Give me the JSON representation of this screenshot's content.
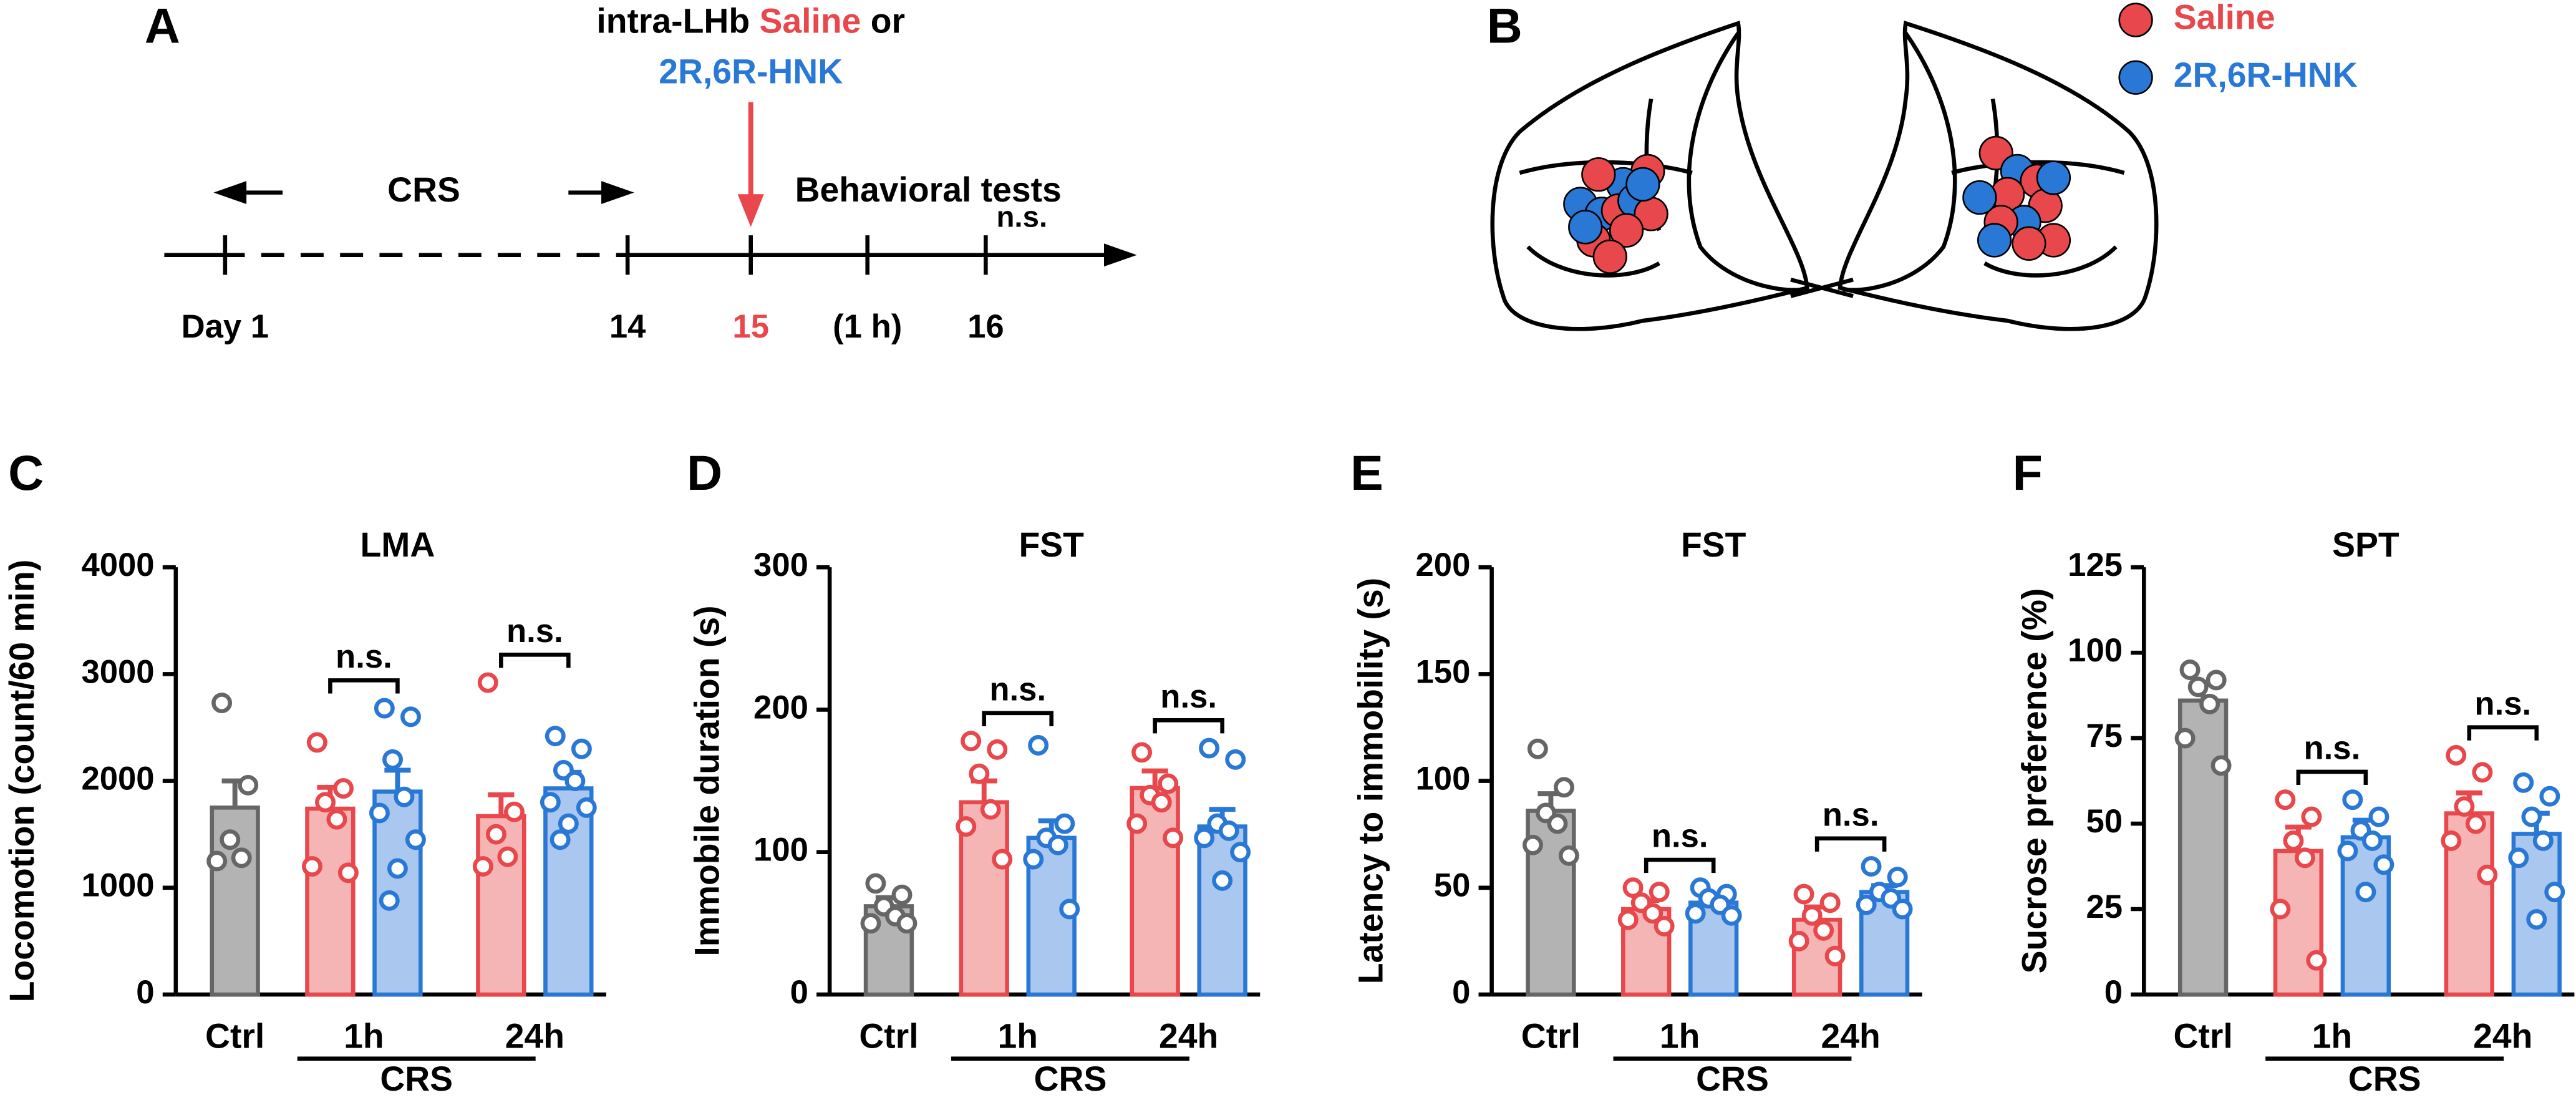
{
  "panel_a": {
    "label": "A",
    "injection": [
      "intra-LHb ",
      "Saline",
      " or"
    ],
    "drug": "2R,6R-HNK",
    "crs": "CRS",
    "behavioral": "Behavioral tests",
    "ns": "n.s.",
    "days": [
      "Day 1",
      "14",
      "15",
      "(1 h)",
      "16"
    ]
  },
  "panel_b": {
    "label": "B",
    "legend": [
      {
        "name": "Saline",
        "color": "#e8474c"
      },
      {
        "name": "2R,6R-HNK",
        "color": "#2a78d6"
      }
    ]
  },
  "chart_data": [
    {
      "type": "bar",
      "panel": "C",
      "title": "LMA",
      "ylabel": "Locomotion (count/60 min)",
      "categories": [
        "Ctrl",
        "1h",
        "24h"
      ],
      "group": "CRS",
      "ylim": [
        0,
        4000
      ],
      "yticks": [
        0,
        1000,
        2000,
        3000,
        4000
      ],
      "annotations": [
        null,
        "n.s.",
        "n.s."
      ],
      "series": [
        {
          "color": "#666666",
          "fill": "#b3b3b3",
          "values": [
            1750,
            null,
            null
          ],
          "errors": [
            250,
            null,
            null
          ],
          "points": [
            [
              2730,
              1960,
              1450,
              1280,
              1250
            ],
            null,
            null
          ]
        },
        {
          "color": "#e8474c",
          "fill": "#f6b5b5",
          "values": [
            null,
            1740,
            1670
          ],
          "errors": [
            null,
            200,
            200
          ],
          "points": [
            null,
            [
              2360,
              1930,
              1800,
              1640,
              1200,
              1140
            ],
            [
              2920,
              1710,
              1500,
              1290,
              1200
            ]
          ]
        },
        {
          "color": "#2a78d6",
          "fill": "#aac8ef",
          "values": [
            null,
            1900,
            1930
          ],
          "errors": [
            null,
            200,
            150
          ],
          "points": [
            null,
            [
              2680,
              2600,
              2200,
              1850,
              1700,
              1450,
              1180,
              880
            ],
            [
              2420,
              2300,
              2100,
              2000,
              1800,
              1750,
              1600,
              1450
            ]
          ]
        }
      ]
    },
    {
      "type": "bar",
      "panel": "D",
      "title": "FST",
      "ylabel": "Immobile duration (s)",
      "categories": [
        "Ctrl",
        "1h",
        "24h"
      ],
      "group": "CRS",
      "ylim": [
        0,
        300
      ],
      "yticks": [
        0,
        100,
        200,
        300
      ],
      "annotations": [
        null,
        "n.s.",
        "n.s."
      ],
      "series": [
        {
          "color": "#666666",
          "fill": "#b3b3b3",
          "values": [
            62,
            null,
            null
          ],
          "errors": [
            6,
            null,
            null
          ],
          "points": [
            [
              78,
              70,
              62,
              55,
              50,
              50
            ],
            null,
            null
          ]
        },
        {
          "color": "#e8474c",
          "fill": "#f6b5b5",
          "values": [
            null,
            135,
            145
          ],
          "errors": [
            null,
            15,
            12
          ],
          "points": [
            null,
            [
              178,
              172,
              155,
              130,
              118,
              95
            ],
            [
              170,
              148,
              140,
              135,
              120,
              110
            ]
          ]
        },
        {
          "color": "#2a78d6",
          "fill": "#aac8ef",
          "values": [
            null,
            110,
            118
          ],
          "errors": [
            null,
            12,
            12
          ],
          "points": [
            null,
            [
              175,
              120,
              110,
              105,
              95,
              60
            ],
            [
              173,
              165,
              120,
              115,
              110,
              100,
              80
            ]
          ]
        }
      ]
    },
    {
      "type": "bar",
      "panel": "E",
      "title": "FST",
      "ylabel": "Latency to immobility (s)",
      "categories": [
        "Ctrl",
        "1h",
        "24h"
      ],
      "group": "CRS",
      "ylim": [
        0,
        200
      ],
      "yticks": [
        0,
        50,
        100,
        150,
        200
      ],
      "annotations": [
        null,
        "n.s.",
        "n.s."
      ],
      "series": [
        {
          "color": "#666666",
          "fill": "#b3b3b3",
          "values": [
            86,
            null,
            null
          ],
          "errors": [
            8,
            null,
            null
          ],
          "points": [
            [
              115,
              97,
              85,
              80,
              70,
              65
            ],
            null,
            null
          ]
        },
        {
          "color": "#e8474c",
          "fill": "#f6b5b5",
          "values": [
            null,
            40,
            35
          ],
          "errors": [
            null,
            4,
            6
          ],
          "points": [
            null,
            [
              50,
              48,
              43,
              38,
              35,
              32
            ],
            [
              47,
              43,
              37,
              30,
              25,
              18
            ]
          ]
        },
        {
          "color": "#2a78d6",
          "fill": "#aac8ef",
          "values": [
            null,
            43,
            48
          ],
          "errors": [
            null,
            3,
            3
          ],
          "points": [
            null,
            [
              50,
              47,
              45,
              42,
              38,
              37
            ],
            [
              60,
              55,
              48,
              45,
              42,
              40
            ]
          ]
        }
      ]
    },
    {
      "type": "bar",
      "panel": "F",
      "title": "SPT",
      "ylabel": "Sucrose preference (%)",
      "categories": [
        "Ctrl",
        "1h",
        "24h"
      ],
      "group": "CRS",
      "ylim": [
        0,
        125
      ],
      "yticks": [
        0,
        25,
        50,
        75,
        100,
        125
      ],
      "annotations": [
        null,
        "n.s.",
        "n.s."
      ],
      "series": [
        {
          "color": "#666666",
          "fill": "#b3b3b3",
          "values": [
            86,
            null,
            null
          ],
          "errors": [
            5,
            null,
            null
          ],
          "points": [
            [
              95,
              92,
              90,
              85,
              75,
              67
            ],
            null,
            null
          ]
        },
        {
          "color": "#e8474c",
          "fill": "#f6b5b5",
          "values": [
            null,
            42,
            53
          ],
          "errors": [
            null,
            7,
            6
          ],
          "points": [
            null,
            [
              57,
              52,
              45,
              40,
              25,
              10
            ],
            [
              70,
              65,
              55,
              50,
              45,
              35
            ]
          ]
        },
        {
          "color": "#2a78d6",
          "fill": "#aac8ef",
          "values": [
            null,
            46,
            47
          ],
          "errors": [
            null,
            5,
            6
          ],
          "points": [
            null,
            [
              57,
              52,
              48,
              45,
              42,
              38,
              30
            ],
            [
              62,
              58,
              52,
              45,
              40,
              30,
              22
            ]
          ]
        }
      ]
    }
  ]
}
